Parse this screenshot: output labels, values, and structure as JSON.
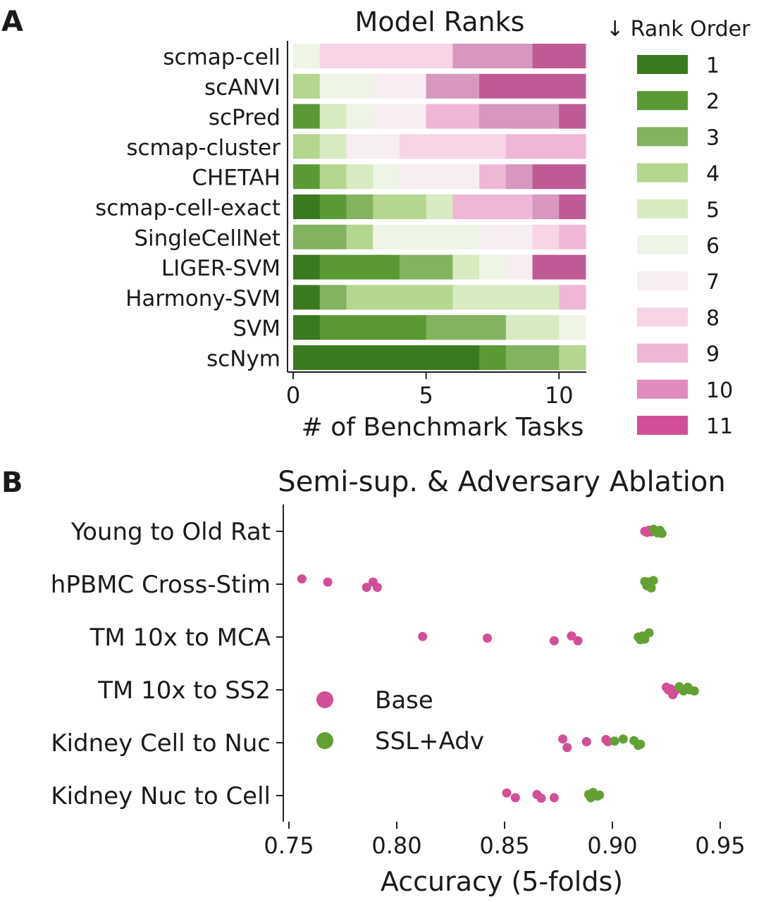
{
  "chart_data": [
    {
      "panel_label": "A",
      "type": "bar",
      "stacked": true,
      "orientation": "horizontal",
      "title": "Model Ranks",
      "xlabel": "# of Benchmark Tasks",
      "ylabel": "",
      "xlim": [
        0,
        11
      ],
      "xticks": [
        0,
        5,
        10
      ],
      "categories": [
        "scmap-cell",
        "scANVI",
        "scPred",
        "scmap-cluster",
        "CHETAH",
        "scmap-cell-exact",
        "SingleCellNet",
        "LIGER-SVM",
        "Harmony-SVM",
        "SVM",
        "scNym"
      ],
      "legend": {
        "title": "↓ Rank Order",
        "position": "right",
        "entries": [
          "1",
          "2",
          "3",
          "4",
          "5",
          "6",
          "7",
          "8",
          "9",
          "10",
          "11"
        ]
      },
      "rank_colors": [
        "#3a7a1f",
        "#5a9a35",
        "#82b35e",
        "#b4d68e",
        "#d8eabf",
        "#eef4e6",
        "#f8edf2",
        "#f7d5e6",
        "#eeb7d6",
        "#e08bbd",
        "#d24f97"
      ],
      "segment_colors": [
        "#3a7a1f",
        "#5a9a35",
        "#82b35e",
        "#b4d68e",
        "#d8eabf",
        "#eef4e6",
        "#f8edf2",
        "#f7d5e6",
        "#eeb7d6",
        "#d797bf",
        "#c05a95"
      ],
      "rank_counts": [
        [
          0,
          0,
          0,
          0,
          0,
          1,
          0,
          5,
          0,
          3,
          2
        ],
        [
          0,
          0,
          0,
          1,
          0,
          2,
          2,
          0,
          0,
          2,
          4
        ],
        [
          0,
          1,
          0,
          0,
          1,
          1,
          2,
          0,
          2,
          3,
          1
        ],
        [
          0,
          0,
          0,
          1,
          1,
          0,
          2,
          4,
          3,
          0,
          0
        ],
        [
          0,
          1,
          0,
          1,
          1,
          1,
          3,
          0,
          1,
          1,
          2
        ],
        [
          1,
          1,
          1,
          2,
          1,
          0,
          0,
          0,
          3,
          1,
          1
        ],
        [
          0,
          0,
          2,
          1,
          0,
          4,
          2,
          1,
          1,
          0,
          0
        ],
        [
          1,
          3,
          2,
          0,
          1,
          1,
          1,
          0,
          0,
          0,
          2
        ],
        [
          1,
          0,
          1,
          4,
          4,
          0,
          0,
          0,
          1,
          0,
          0
        ],
        [
          1,
          4,
          3,
          0,
          2,
          1,
          0,
          0,
          0,
          0,
          0
        ],
        [
          7,
          1,
          2,
          1,
          0,
          0,
          0,
          0,
          0,
          0,
          0
        ]
      ]
    },
    {
      "panel_label": "B",
      "type": "scatter",
      "subtype": "strip",
      "title": "Semi-sup. & Adversary Ablation",
      "xlabel": "Accuracy (5-folds)",
      "ylabel": "",
      "xlim": [
        0.745,
        0.962
      ],
      "xticks": [
        "0.75",
        "0.80",
        "0.85",
        "0.90",
        "0.95"
      ],
      "xtick_values": [
        0.75,
        0.8,
        0.85,
        0.9,
        0.95
      ],
      "categories": [
        "Young to Old Rat",
        "hPBMC Cross-Stim",
        "TM 10x to MCA",
        "TM 10x to SS2",
        "Kidney Cell to Nuc",
        "Kidney Nuc to Cell"
      ],
      "legend": {
        "position": "center-left",
        "entries": [
          "Base",
          "SSL+Adv"
        ]
      },
      "series": [
        {
          "name": "Base",
          "color": "#d24f97",
          "points": [
            [
              0.915,
              0.0
            ],
            [
              0.917,
              -0.02
            ],
            [
              0.918,
              0.01
            ],
            [
              0.919,
              -0.01
            ],
            [
              0.916,
              0.02
            ],
            [
              0.756,
              -0.1
            ],
            [
              0.768,
              -0.04
            ],
            [
              0.786,
              0.06
            ],
            [
              0.789,
              -0.04
            ],
            [
              0.791,
              0.06
            ],
            [
              0.812,
              -0.01
            ],
            [
              0.842,
              0.02
            ],
            [
              0.873,
              0.07
            ],
            [
              0.881,
              -0.02
            ],
            [
              0.884,
              0.07
            ],
            [
              0.925,
              -0.05
            ],
            [
              0.926,
              0.0
            ],
            [
              0.928,
              0.09
            ],
            [
              0.929,
              0.02
            ],
            [
              0.927,
              -0.02
            ],
            [
              0.877,
              -0.07
            ],
            [
              0.879,
              0.09
            ],
            [
              0.888,
              -0.02
            ],
            [
              0.897,
              -0.06
            ],
            [
              0.898,
              -0.02
            ],
            [
              0.851,
              -0.05
            ],
            [
              0.855,
              0.04
            ],
            [
              0.865,
              -0.02
            ],
            [
              0.867,
              0.05
            ],
            [
              0.873,
              0.04
            ]
          ]
        },
        {
          "name": "SSL+Adv",
          "color": "#63a033",
          "points": [
            [
              0.919,
              -0.04
            ],
            [
              0.921,
              0.03
            ],
            [
              0.922,
              -0.02
            ],
            [
              0.923,
              0.04
            ],
            [
              0.92,
              0.0
            ],
            [
              0.915,
              -0.05
            ],
            [
              0.916,
              0.03
            ],
            [
              0.917,
              -0.04
            ],
            [
              0.918,
              0.07
            ],
            [
              0.919,
              -0.07
            ],
            [
              0.912,
              0.0
            ],
            [
              0.913,
              0.05
            ],
            [
              0.914,
              -0.02
            ],
            [
              0.915,
              0.04
            ],
            [
              0.917,
              -0.08
            ],
            [
              0.931,
              -0.06
            ],
            [
              0.933,
              0.02
            ],
            [
              0.935,
              -0.05
            ],
            [
              0.936,
              0.0
            ],
            [
              0.938,
              0.02
            ],
            [
              0.901,
              -0.03
            ],
            [
              0.905,
              -0.07
            ],
            [
              0.91,
              -0.04
            ],
            [
              0.912,
              0.05
            ],
            [
              0.913,
              0.03
            ],
            [
              0.889,
              -0.02
            ],
            [
              0.89,
              0.04
            ],
            [
              0.891,
              -0.06
            ],
            [
              0.893,
              0.01
            ],
            [
              0.894,
              -0.01
            ]
          ]
        }
      ]
    }
  ]
}
